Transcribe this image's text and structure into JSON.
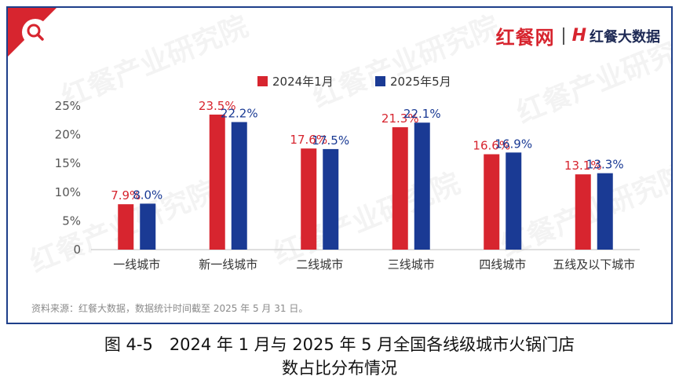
{
  "header": {
    "brand_main": "红餐网",
    "brand_sub_mark": "H",
    "brand_sub": "红餐大数据"
  },
  "watermark": "红餐产业研究院",
  "colors": {
    "series_2024": "#d7252f",
    "series_2025": "#1a3a94",
    "frame": "#1e3f8a"
  },
  "chart_data": {
    "type": "bar",
    "categories": [
      "一线城市",
      "新一线城市",
      "二线城市",
      "三线城市",
      "四线城市",
      "五线及以下城市"
    ],
    "series": [
      {
        "name": "2024年1月",
        "values": [
          7.9,
          23.5,
          17.6,
          21.3,
          16.6,
          13.1
        ],
        "labels": [
          "7.9%",
          "23.5%",
          "17.6%",
          "21.3%",
          "16.6%",
          "13.1%"
        ]
      },
      {
        "name": "2025年5月",
        "values": [
          8.0,
          22.2,
          17.5,
          22.1,
          16.9,
          13.3
        ],
        "labels": [
          "8.0%",
          "22.2%",
          "17.5%",
          "22.1%",
          "16.9%",
          "13.3%"
        ]
      }
    ],
    "ylim": [
      0,
      25
    ],
    "yticks": [
      "0",
      "5%",
      "10%",
      "15%",
      "20%",
      "25%"
    ],
    "legend_position": "top-center",
    "grid": false
  },
  "source": "资料来源：红餐大数据，数据统计时间截至 2025 年 5 月 31 日。",
  "caption": {
    "line1": "图 4-5　2024 年 1 月与 2025 年 5 月全国各线级城市火锅门店",
    "line2": "数占比分布情况"
  }
}
